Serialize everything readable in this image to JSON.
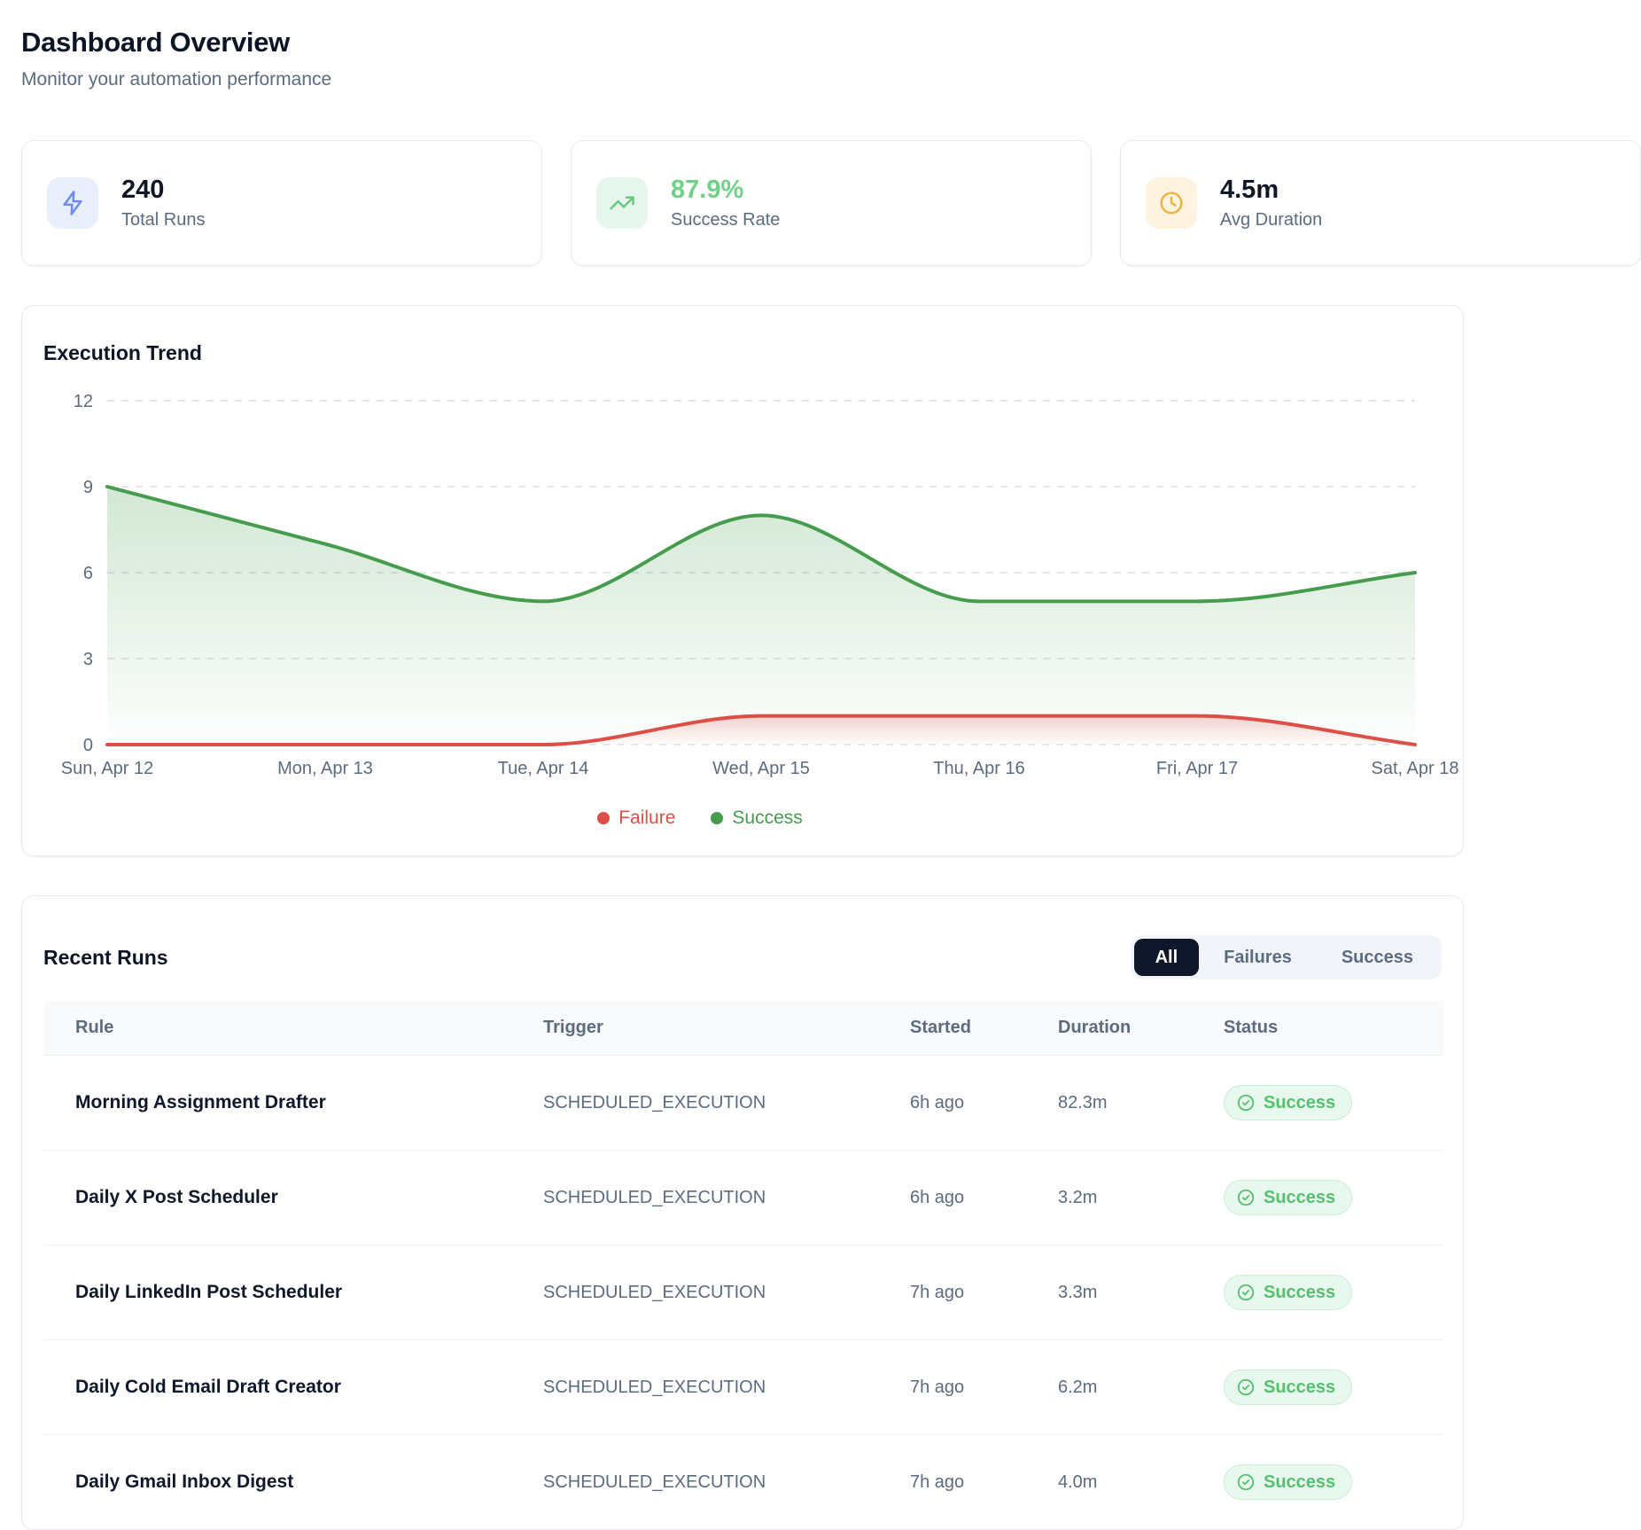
{
  "header": {
    "title": "Dashboard Overview",
    "subtitle": "Monitor your automation performance"
  },
  "stats": [
    {
      "value": "240",
      "label": "Total Runs",
      "icon": "lightning-icon",
      "accent": "#6b8df0",
      "icon_bg": "#e8eefc",
      "value_color": "#101828"
    },
    {
      "value": "87.9%",
      "label": "Success Rate",
      "icon": "trending-up-icon",
      "accent": "#66c97e",
      "icon_bg": "#e7f6ec",
      "value_color": "#6fd087"
    },
    {
      "value": "4.5m",
      "label": "Avg Duration",
      "icon": "clock-icon",
      "accent": "#ecb442",
      "icon_bg": "#fdf3de",
      "value_color": "#101828"
    }
  ],
  "chart_card": {
    "title": "Execution Trend"
  },
  "chart_data": {
    "type": "area",
    "x_labels": [
      "Sun, Apr 12",
      "Mon, Apr 13",
      "Tue, Apr 14",
      "Wed, Apr 15",
      "Thu, Apr 16",
      "Fri, Apr 17",
      "Sat, Apr 18"
    ],
    "series": [
      {
        "name": "Failure",
        "color": "#dd4f46",
        "values": [
          0,
          0,
          0,
          1,
          1,
          1,
          0
        ]
      },
      {
        "name": "Success",
        "color": "#449c4c",
        "values": [
          9,
          7,
          5,
          8,
          5,
          5,
          6
        ]
      }
    ],
    "ylim": [
      0,
      12
    ],
    "yticks": [
      0,
      3,
      6,
      9,
      12
    ],
    "grid": "horizontal-dashed",
    "legend_position": "bottom"
  },
  "recent_runs": {
    "title": "Recent Runs",
    "filters": [
      {
        "label": "All",
        "active": true
      },
      {
        "label": "Failures",
        "active": false
      },
      {
        "label": "Success",
        "active": false
      }
    ],
    "columns": [
      "Rule",
      "Trigger",
      "Started",
      "Duration",
      "Status"
    ],
    "rows": [
      {
        "rule": "Morning Assignment Drafter",
        "trigger": "SCHEDULED_EXECUTION",
        "started": "6h ago",
        "duration": "82.3m",
        "status": "Success"
      },
      {
        "rule": "Daily X Post Scheduler",
        "trigger": "SCHEDULED_EXECUTION",
        "started": "6h ago",
        "duration": "3.2m",
        "status": "Success"
      },
      {
        "rule": "Daily LinkedIn Post Scheduler",
        "trigger": "SCHEDULED_EXECUTION",
        "started": "7h ago",
        "duration": "3.3m",
        "status": "Success"
      },
      {
        "rule": "Daily Cold Email Draft Creator",
        "trigger": "SCHEDULED_EXECUTION",
        "started": "7h ago",
        "duration": "6.2m",
        "status": "Success"
      },
      {
        "rule": "Daily Gmail Inbox Digest",
        "trigger": "SCHEDULED_EXECUTION",
        "started": "7h ago",
        "duration": "4.0m",
        "status": "Success"
      }
    ],
    "status_style": {
      "bg": "#e9f8ee",
      "border": "#c9eed4",
      "text": "#55c06d"
    }
  }
}
